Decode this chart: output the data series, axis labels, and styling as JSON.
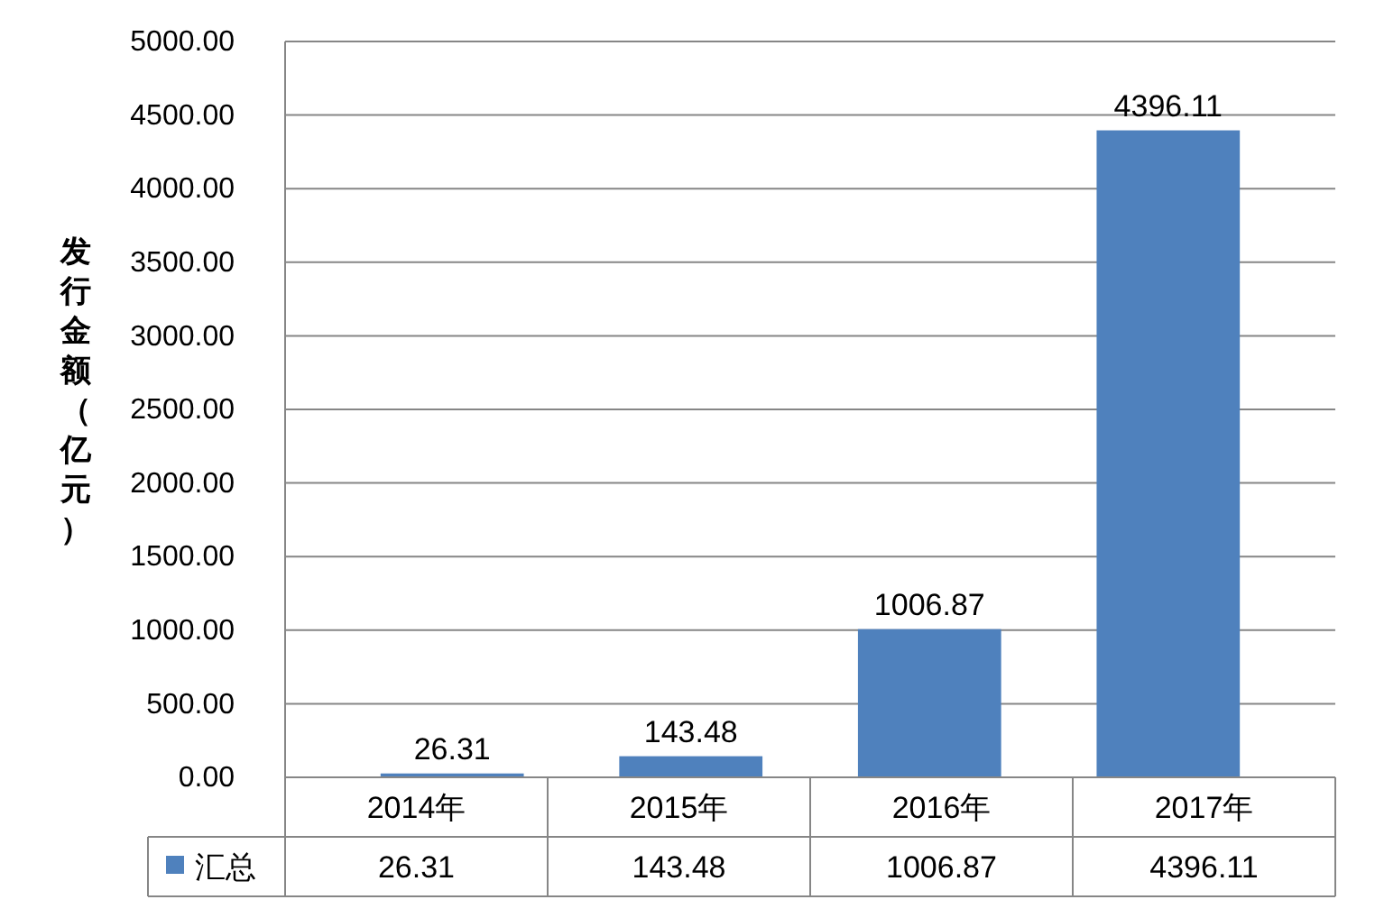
{
  "chart_data": {
    "type": "bar",
    "ylabel": "发行金额（亿元）",
    "categories": [
      "2014年",
      "2015年",
      "2016年",
      "2017年"
    ],
    "series": [
      {
        "name": "汇总",
        "color": "#4f81bd",
        "values": [
          26.31,
          143.48,
          1006.87,
          4396.11
        ]
      }
    ],
    "ylim": [
      0,
      5000
    ],
    "yticks": [
      {
        "value": 0,
        "label": "0.00"
      },
      {
        "value": 500,
        "label": "500.00"
      },
      {
        "value": 1000,
        "label": "1000.00"
      },
      {
        "value": 1500,
        "label": "1500.00"
      },
      {
        "value": 2000,
        "label": "2000.00"
      },
      {
        "value": 2500,
        "label": "2500.00"
      },
      {
        "value": 3000,
        "label": "3000.00"
      },
      {
        "value": 3500,
        "label": "3500.00"
      },
      {
        "value": 4000,
        "label": "4000.00"
      },
      {
        "value": 4500,
        "label": "4500.00"
      },
      {
        "value": 5000,
        "label": "5000.00"
      }
    ],
    "value_labels": [
      "26.31",
      "143.48",
      "1006.87",
      "4396.11"
    ],
    "grid": "y",
    "data_labels": true,
    "legend": "bottom"
  }
}
